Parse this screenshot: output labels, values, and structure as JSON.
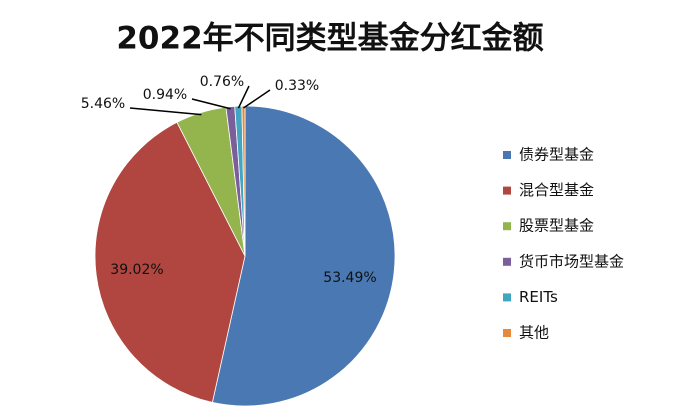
{
  "chart_data": {
    "type": "pie",
    "title": "2022年不同类型基金分红金额",
    "categories": [
      "债券型基金",
      "混合型基金",
      "股票型基金",
      "货币市场型基金",
      "REITs",
      "其他"
    ],
    "values": [
      53.49,
      39.02,
      5.46,
      0.94,
      0.76,
      0.33
    ],
    "value_labels": [
      "53.49%",
      "39.02%",
      "5.46%",
      "0.94%",
      "0.76%",
      "0.33%"
    ],
    "colors": [
      "#4a78b2",
      "#b0463f",
      "#94b54d",
      "#7a5f9b",
      "#42a6c0",
      "#e6893a"
    ],
    "legend": "right"
  }
}
